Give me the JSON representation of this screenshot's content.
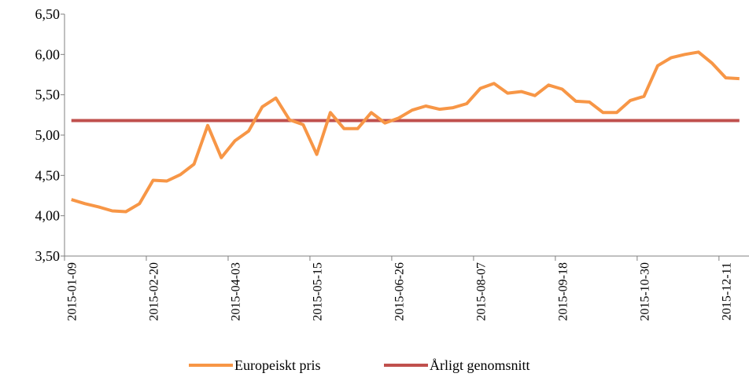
{
  "chart_data": {
    "type": "line",
    "categories": [
      "2015-01-09",
      null,
      null,
      null,
      null,
      null,
      "2015-02-20",
      null,
      null,
      null,
      null,
      null,
      "2015-04-03",
      null,
      null,
      null,
      null,
      null,
      "2015-05-15",
      null,
      null,
      null,
      null,
      null,
      "2015-06-26",
      null,
      null,
      null,
      null,
      null,
      "2015-08-07",
      null,
      null,
      null,
      null,
      null,
      "2015-09-18",
      null,
      null,
      null,
      null,
      null,
      "2015-10-30",
      null,
      null,
      null,
      null,
      null,
      "2015-12-11",
      null
    ],
    "series": [
      {
        "name": "Europeiskt pris",
        "color": "#f79646",
        "values": [
          4.2,
          4.15,
          4.11,
          4.06,
          4.05,
          4.15,
          4.44,
          4.43,
          4.51,
          4.64,
          5.12,
          4.72,
          4.93,
          5.05,
          5.35,
          5.46,
          5.19,
          5.13,
          4.76,
          5.28,
          5.08,
          5.08,
          5.28,
          5.15,
          5.21,
          5.31,
          5.36,
          5.32,
          5.34,
          5.39,
          5.58,
          5.64,
          5.52,
          5.54,
          5.49,
          5.62,
          5.57,
          5.42,
          5.41,
          5.28,
          5.28,
          5.43,
          5.48,
          5.86,
          5.96,
          6.0,
          6.03,
          5.89,
          5.71,
          5.7
        ]
      },
      {
        "name": "Årligt genomsnitt",
        "color": "#c0504d",
        "values": [
          5.18,
          5.18,
          5.18,
          5.18,
          5.18,
          5.18,
          5.18,
          5.18,
          5.18,
          5.18,
          5.18,
          5.18,
          5.18,
          5.18,
          5.18,
          5.18,
          5.18,
          5.18,
          5.18,
          5.18,
          5.18,
          5.18,
          5.18,
          5.18,
          5.18,
          5.18,
          5.18,
          5.18,
          5.18,
          5.18,
          5.18,
          5.18,
          5.18,
          5.18,
          5.18,
          5.18,
          5.18,
          5.18,
          5.18,
          5.18,
          5.18,
          5.18,
          5.18,
          5.18,
          5.18,
          5.18,
          5.18,
          5.18,
          5.18,
          5.18
        ]
      }
    ],
    "ylim": [
      3.5,
      6.5
    ],
    "yticks": [
      {
        "value": 3.5,
        "label": "3,50"
      },
      {
        "value": 4,
        "label": "4,00"
      },
      {
        "value": 4.5,
        "label": "4,50"
      },
      {
        "value": 5,
        "label": "5,00"
      },
      {
        "value": 5.5,
        "label": "5,50"
      },
      {
        "value": 6,
        "label": "6,00"
      },
      {
        "value": 6.5,
        "label": "6,50"
      }
    ],
    "legend": "bottom"
  }
}
